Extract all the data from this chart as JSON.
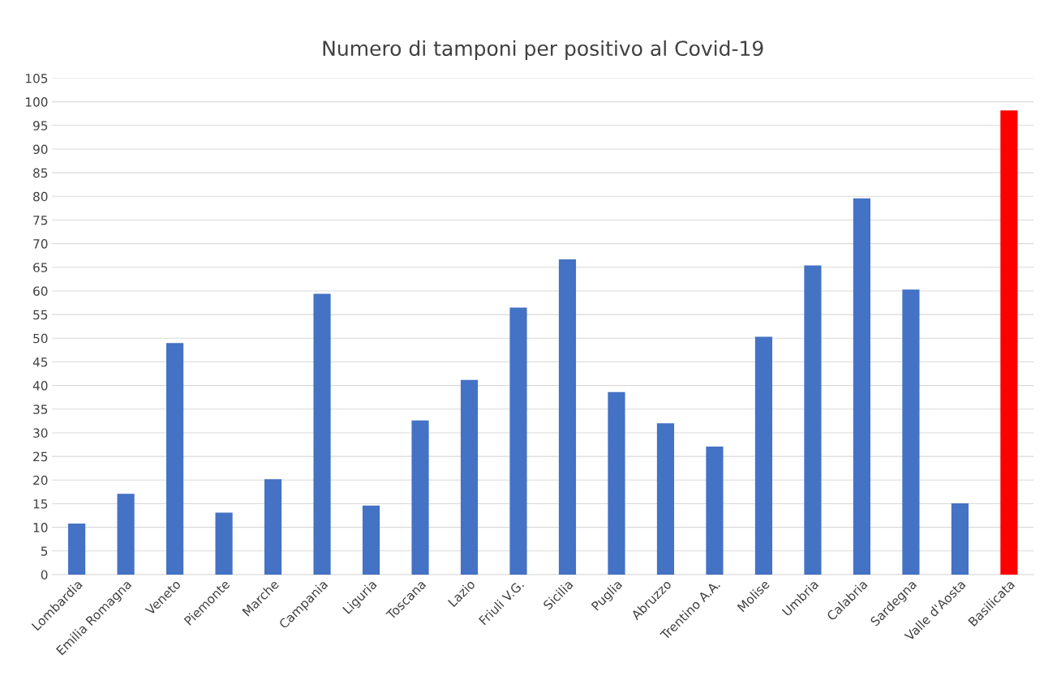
{
  "chart_data": {
    "type": "bar",
    "title": "Numero di tamponi per positivo al Covid-19",
    "categories": [
      "Lombardia",
      "Emilia Romagna",
      "Veneto",
      "Piemonte",
      "Marche",
      "Campania",
      "Liguria",
      "Toscana",
      "Lazio",
      "Friuli V.G.",
      "Sicilia",
      "Puglia",
      "Abruzzo",
      "Trentino A.A.",
      "Molise",
      "Umbria",
      "Calabria",
      "Sardegna",
      "Valle d'Aosta",
      "Basilicata"
    ],
    "values": [
      10.8,
      17.1,
      49.0,
      13.1,
      20.2,
      59.4,
      14.6,
      32.6,
      41.2,
      56.5,
      66.7,
      38.6,
      32.0,
      27.1,
      50.3,
      65.4,
      79.6,
      60.3,
      15.1,
      98.2
    ],
    "colors": [
      "#4472c4",
      "#4472c4",
      "#4472c4",
      "#4472c4",
      "#4472c4",
      "#4472c4",
      "#4472c4",
      "#4472c4",
      "#4472c4",
      "#4472c4",
      "#4472c4",
      "#4472c4",
      "#4472c4",
      "#4472c4",
      "#4472c4",
      "#4472c4",
      "#4472c4",
      "#4472c4",
      "#4472c4",
      "#ff0000"
    ],
    "ylim": [
      0,
      105
    ],
    "yticks": [
      0,
      5,
      10,
      15,
      20,
      25,
      30,
      35,
      40,
      45,
      50,
      55,
      60,
      65,
      70,
      75,
      80,
      85,
      90,
      95,
      100,
      105
    ],
    "grid": "y"
  }
}
